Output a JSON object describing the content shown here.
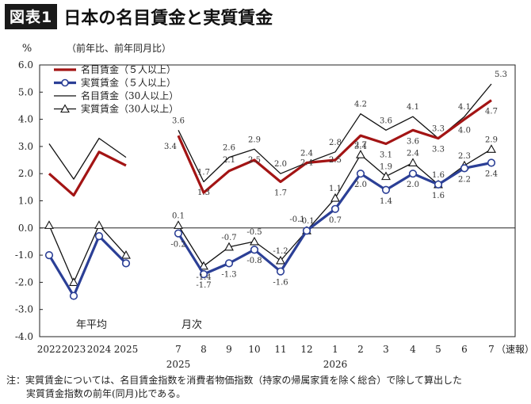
{
  "header": {
    "badge": "図表1",
    "title": "日本の名目賃金と実質賃金"
  },
  "footnote": {
    "line1": "注：実質賃金については、名目賃金指数を消費者物価指数（持家の帰属家賃を除く総合）で除して算出した",
    "line2": "実質賃金指数の前年(同月)比である。"
  },
  "chart_data": {
    "type": "line",
    "ylabel": "%",
    "subtitle": "（前年比、前年同月比）",
    "ylim": [
      -4.0,
      6.0
    ],
    "yticks": [
      "6.0",
      "5.0",
      "4.0",
      "3.0",
      "2.0",
      "1.0",
      "0.0",
      "-1.0",
      "-2.0",
      "-3.0",
      "-4.0"
    ],
    "categories": [
      "2022",
      "2023",
      "2024",
      "2025",
      "7",
      "8",
      "9",
      "10",
      "11",
      "12",
      "1",
      "2",
      "3",
      "4",
      "5",
      "6",
      "7"
    ],
    "year_labels": [
      "2025",
      "2026"
    ],
    "x_suffix": "（速報）",
    "segment_labels": [
      "年平均",
      "月次"
    ],
    "legend_position": "top-left",
    "series": [
      {
        "name": "名目賃金（５人以上）",
        "color": "#a31414",
        "marker": "none",
        "weight": "thick",
        "values": [
          2.0,
          1.2,
          2.8,
          2.3,
          3.4,
          1.3,
          2.1,
          2.5,
          1.7,
          2.4,
          2.5,
          3.4,
          3.1,
          3.6,
          3.3,
          4.0,
          4.7
        ],
        "labels": [
          "",
          "",
          "",
          "",
          "3.4",
          "1.3",
          "2.1",
          "2.5",
          "1.7",
          "2.4",
          "2.5",
          "3.4",
          "3.1",
          "3.6",
          "3.3",
          "4.0",
          "4.7"
        ]
      },
      {
        "name": "実質賃金（５人以上）",
        "color": "#2b3f96",
        "marker": "circle",
        "weight": "thick",
        "values": [
          -1.0,
          -2.5,
          -0.3,
          -1.3,
          -0.2,
          -1.7,
          -1.3,
          -0.8,
          -1.6,
          -0.1,
          0.7,
          2.0,
          1.4,
          2.0,
          1.6,
          2.2,
          2.4
        ],
        "labels": [
          "",
          "",
          "",
          "",
          "-0.2",
          "-1.7",
          "-1.3",
          "-0.8",
          "-1.6",
          "-0.1",
          "0.7",
          "2.0",
          "1.4",
          "2.0",
          "1.6",
          "2.2",
          "2.4"
        ]
      },
      {
        "name": "名目賃金（30人以上）",
        "color": "#111111",
        "marker": "none",
        "weight": "thin",
        "values": [
          3.1,
          1.8,
          3.3,
          2.6,
          3.6,
          1.7,
          2.6,
          2.9,
          2.0,
          2.4,
          2.8,
          4.2,
          3.6,
          4.1,
          3.3,
          4.1,
          5.3
        ],
        "labels": [
          "",
          "",
          "",
          "",
          "3.6",
          "1.7",
          "2.6",
          "2.9",
          "2.0",
          "2.4",
          "2.8",
          "4.2",
          "3.6",
          "4.1",
          "3.3",
          "4.1",
          "5.3"
        ]
      },
      {
        "name": "実質賃金（30人以上）",
        "color": "#111111",
        "marker": "triangle",
        "weight": "thin",
        "values": [
          0.1,
          -2.0,
          0.1,
          -1.0,
          0.1,
          -1.4,
          -0.7,
          -0.5,
          -1.2,
          -0.1,
          1.1,
          2.7,
          1.9,
          2.4,
          1.6,
          2.3,
          2.9
        ],
        "labels": [
          "",
          "",
          "",
          "",
          "0.1",
          "-1.4",
          "-0.7",
          "-0.5",
          "-1.2",
          "-0.1",
          "1.1",
          "2.7",
          "1.9",
          "2.4",
          "1.6",
          "2.3",
          "2.9"
        ]
      }
    ]
  }
}
